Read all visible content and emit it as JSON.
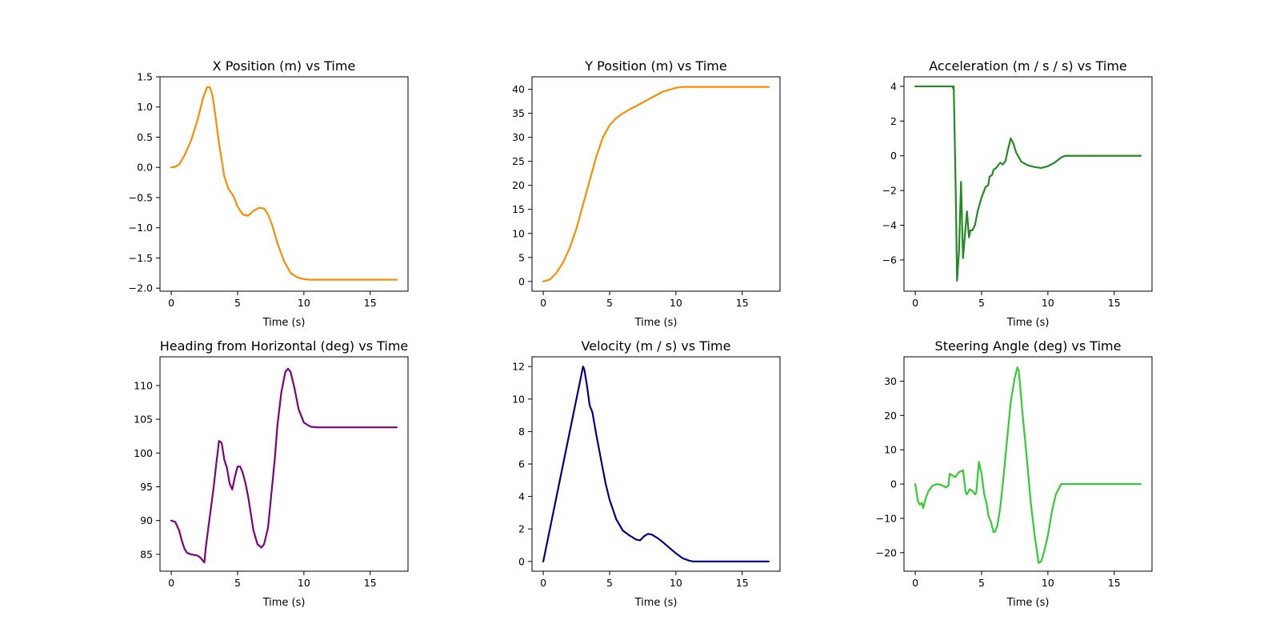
{
  "chart_data": [
    {
      "type": "line",
      "title": "X Position (m) vs Time",
      "xlabel": "Time (s)",
      "ylabel": "",
      "xlim": [
        -0.85,
        17.85
      ],
      "ylim": [
        -2.05,
        1.5
      ],
      "xticks": [
        0,
        5,
        10,
        15
      ],
      "yticks": [
        1.5,
        1.0,
        0.5,
        0.0,
        -0.5,
        -1.0,
        -1.5,
        -2.0
      ],
      "ytick_labels": [
        "1.5",
        "1.0",
        "0.5",
        "0.0",
        "−0.5",
        "−1.0",
        "−1.5",
        "−2.0"
      ],
      "color": "#ff8c00",
      "series": [
        {
          "name": "X Position",
          "x": [
            0,
            0.3,
            0.6,
            1,
            1.5,
            2,
            2.4,
            2.7,
            2.9,
            3.1,
            3.3,
            3.6,
            4,
            4.3,
            4.7,
            5,
            5.4,
            5.8,
            6.2,
            6.6,
            7,
            7.3,
            7.6,
            8,
            8.5,
            9,
            9.5,
            10,
            10.5,
            11,
            12,
            14,
            16,
            17
          ],
          "y": [
            0,
            0.01,
            0.05,
            0.2,
            0.45,
            0.8,
            1.15,
            1.33,
            1.33,
            1.2,
            0.9,
            0.4,
            -0.15,
            -0.35,
            -0.48,
            -0.65,
            -0.78,
            -0.8,
            -0.72,
            -0.67,
            -0.68,
            -0.78,
            -0.95,
            -1.25,
            -1.55,
            -1.75,
            -1.82,
            -1.85,
            -1.86,
            -1.86,
            -1.86,
            -1.86,
            -1.86,
            -1.86
          ]
        }
      ]
    },
    {
      "type": "line",
      "title": "Y Position (m) vs Time",
      "xlabel": "Time (s)",
      "ylabel": "",
      "xlim": [
        -0.85,
        17.85
      ],
      "ylim": [
        -2.03,
        42.6
      ],
      "xticks": [
        0,
        5,
        10,
        15
      ],
      "yticks": [
        0,
        5,
        10,
        15,
        20,
        25,
        30,
        35,
        40
      ],
      "ytick_labels": [
        "0",
        "5",
        "10",
        "15",
        "20",
        "25",
        "30",
        "35",
        "40"
      ],
      "color": "#ff8c00",
      "series": [
        {
          "name": "Y Position",
          "x": [
            0,
            0.5,
            1,
            1.5,
            2,
            2.5,
            3,
            3.5,
            4,
            4.5,
            5,
            5.5,
            6,
            6.5,
            7,
            8,
            9,
            10,
            10.5,
            11,
            12,
            14,
            17
          ],
          "y": [
            0,
            0.4,
            1.8,
            4,
            7,
            11,
            16,
            21,
            26,
            30,
            32.5,
            34,
            35,
            35.8,
            36.5,
            38,
            39.5,
            40.3,
            40.5,
            40.5,
            40.5,
            40.5,
            40.5
          ]
        }
      ]
    },
    {
      "type": "line",
      "title": "Acceleration (m / s / s) vs Time",
      "xlabel": "Time (s)",
      "ylabel": "",
      "xlim": [
        -0.85,
        17.85
      ],
      "ylim": [
        -7.8,
        4.55
      ],
      "xticks": [
        0,
        5,
        10,
        15
      ],
      "yticks": [
        4,
        2,
        0,
        -2,
        -4,
        -6
      ],
      "ytick_labels": [
        "4",
        "2",
        "0",
        "−2",
        "−4",
        "−6"
      ],
      "color": "#228b22",
      "series": [
        {
          "name": "Acceleration",
          "x": [
            0,
            2.8,
            2.85,
            2.9,
            3.05,
            3.15,
            3.3,
            3.45,
            3.6,
            3.75,
            3.9,
            4.05,
            4.15,
            4.3,
            4.5,
            4.7,
            5,
            5.3,
            5.5,
            5.6,
            5.8,
            5.9,
            6.1,
            6.2,
            6.4,
            6.6,
            6.8,
            7,
            7.2,
            7.4,
            7.6,
            8,
            8.5,
            9,
            9.5,
            10,
            10.5,
            11,
            11.3,
            12,
            14,
            17
          ],
          "y": [
            4,
            4,
            3.9,
            4,
            -2,
            -7.2,
            -5.5,
            -1.5,
            -5.9,
            -4.5,
            -3.2,
            -4.7,
            -4.3,
            -4.3,
            -4,
            -3.2,
            -2.4,
            -1.8,
            -1.7,
            -1.2,
            -1.1,
            -0.8,
            -0.7,
            -0.6,
            -0.4,
            -0.5,
            -0.3,
            0.4,
            1.0,
            0.7,
            0.2,
            -0.35,
            -0.55,
            -0.65,
            -0.7,
            -0.6,
            -0.4,
            -0.1,
            0,
            0,
            0,
            0
          ]
        }
      ]
    },
    {
      "type": "line",
      "title": "Heading from Horizontal (deg) vs Time",
      "xlabel": "Time (s)",
      "ylabel": "",
      "xlim": [
        -0.85,
        17.85
      ],
      "ylim": [
        82.5,
        114.25
      ],
      "xticks": [
        0,
        5,
        10,
        15
      ],
      "yticks": [
        85,
        90,
        95,
        100,
        105,
        110
      ],
      "ytick_labels": [
        "85",
        "90",
        "95",
        "100",
        "105",
        "110"
      ],
      "color": "#800080",
      "series": [
        {
          "name": "Heading",
          "x": [
            0,
            0.3,
            0.6,
            0.8,
            1,
            1.2,
            1.5,
            2,
            2.2,
            2.4,
            2.5,
            2.6,
            2.8,
            3,
            3.2,
            3.4,
            3.6,
            3.8,
            4,
            4.2,
            4.4,
            4.6,
            4.8,
            5,
            5.2,
            5.4,
            5.6,
            5.8,
            6,
            6.2,
            6.5,
            6.8,
            7,
            7.3,
            7.5,
            7.8,
            8,
            8.3,
            8.6,
            8.8,
            9,
            9.3,
            9.6,
            10,
            10.5,
            11,
            12,
            14,
            17
          ],
          "y": [
            90,
            89.8,
            88.5,
            87,
            85.8,
            85.2,
            85,
            84.8,
            84.5,
            84,
            83.8,
            86,
            89,
            92,
            95,
            98.5,
            101.8,
            101.5,
            99,
            97.8,
            95.5,
            94.6,
            96.5,
            98,
            98,
            97,
            95.5,
            93.5,
            91,
            88.5,
            86.5,
            86,
            86.5,
            89,
            93,
            99,
            104,
            109,
            112,
            112.5,
            112,
            109.5,
            106.5,
            104.5,
            103.9,
            103.8,
            103.8,
            103.8,
            103.8
          ]
        }
      ]
    },
    {
      "type": "line",
      "title": "Velocity (m / s) vs Time",
      "xlabel": "Time (s)",
      "ylabel": "",
      "xlim": [
        -0.85,
        17.85
      ],
      "ylim": [
        -0.6,
        12.6
      ],
      "xticks": [
        0,
        5,
        10,
        15
      ],
      "yticks": [
        0,
        2,
        4,
        6,
        8,
        10,
        12
      ],
      "ytick_labels": [
        "0",
        "2",
        "4",
        "6",
        "8",
        "10",
        "12"
      ],
      "color": "#00008b",
      "series": [
        {
          "name": "Velocity",
          "x": [
            0,
            1,
            2,
            2.9,
            3.0,
            3.1,
            3.3,
            3.5,
            3.7,
            4,
            4.3,
            4.7,
            5,
            5.5,
            6,
            6.5,
            7,
            7.3,
            7.6,
            7.9,
            8.2,
            8.6,
            9,
            9.5,
            10,
            10.5,
            11,
            11.3,
            12,
            14,
            17
          ],
          "y": [
            0,
            4,
            8,
            11.6,
            12,
            11.8,
            10.8,
            9.6,
            9.2,
            7.8,
            6.5,
            4.8,
            3.8,
            2.6,
            1.9,
            1.6,
            1.35,
            1.3,
            1.55,
            1.7,
            1.65,
            1.45,
            1.2,
            0.85,
            0.5,
            0.2,
            0.05,
            0,
            0,
            0,
            0
          ]
        }
      ]
    },
    {
      "type": "line",
      "title": "Steering Angle (deg) vs Time",
      "xlabel": "Time (s)",
      "ylabel": "",
      "xlim": [
        -0.85,
        17.85
      ],
      "ylim": [
        -25.4,
        37.1
      ],
      "xticks": [
        0,
        5,
        10,
        15
      ],
      "yticks": [
        -20,
        -10,
        0,
        10,
        20,
        30
      ],
      "ytick_labels": [
        "−20",
        "−10",
        "0",
        "10",
        "20",
        "30"
      ],
      "color": "#32cd32",
      "series": [
        {
          "name": "Steering Angle",
          "x": [
            0,
            0.2,
            0.35,
            0.5,
            0.6,
            0.8,
            1,
            1.3,
            1.6,
            2,
            2.3,
            2.5,
            2.6,
            2.8,
            3,
            3.3,
            3.6,
            3.8,
            3.9,
            4.1,
            4.3,
            4.5,
            4.6,
            4.8,
            5,
            5.2,
            5.4,
            5.5,
            5.7,
            5.9,
            6,
            6.2,
            6.4,
            6.6,
            6.8,
            7,
            7.2,
            7.5,
            7.7,
            7.8,
            7.9,
            8.1,
            8.4,
            8.7,
            9,
            9.3,
            9.5,
            9.7,
            10,
            10.3,
            10.6,
            11,
            11.3,
            12,
            14,
            17
          ],
          "y": [
            0,
            -5,
            -6,
            -5.5,
            -7,
            -4,
            -2,
            -0.5,
            0,
            -0.3,
            -1,
            -0.5,
            3,
            2.5,
            2,
            3.5,
            4,
            -2.5,
            -3,
            -1.5,
            -2,
            -3,
            -2.5,
            6.5,
            3,
            -3,
            -6,
            -9,
            -11,
            -14,
            -14,
            -12,
            -7,
            0,
            8,
            16,
            24,
            31,
            34,
            33,
            29,
            20,
            8,
            -5,
            -15,
            -23,
            -22.5,
            -20,
            -15,
            -8,
            -3,
            0,
            0,
            0,
            0,
            0
          ]
        }
      ]
    }
  ]
}
